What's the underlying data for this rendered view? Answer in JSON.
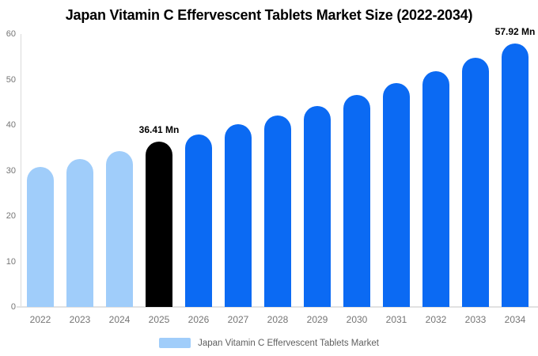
{
  "title": "Japan Vitamin C Effervescent Tablets Market Size (2022-2034)",
  "legend": {
    "label": "Japan Vitamin C Effervescent Tablets Market",
    "swatch_color": "#a0cdfa"
  },
  "colors": {
    "historical_bar": "#a0cdfa",
    "base_year_bar": "#000000",
    "forecast_bar": "#0b6af3",
    "axis_line": "#d9d9d9",
    "baseline": "#e2e2e2",
    "tick_text": "#757575",
    "legend_text": "#5f5f5f",
    "annotation_text": "#000000",
    "background": "#ffffff"
  },
  "chart_data": {
    "type": "bar",
    "title": "Japan Vitamin C Effervescent Tablets Market Size (2022-2034)",
    "categories": [
      "2022",
      "2023",
      "2024",
      "2025",
      "2026",
      "2027",
      "2028",
      "2029",
      "2030",
      "2031",
      "2032",
      "2033",
      "2034"
    ],
    "values": [
      30.8,
      32.6,
      34.3,
      36.41,
      38.0,
      40.1,
      42.1,
      44.2,
      46.6,
      49.2,
      51.8,
      54.7,
      57.92
    ],
    "bar_colors": [
      "#a0cdfa",
      "#a0cdfa",
      "#a0cdfa",
      "#000000",
      "#0b6af3",
      "#0b6af3",
      "#0b6af3",
      "#0b6af3",
      "#0b6af3",
      "#0b6af3",
      "#0b6af3",
      "#0b6af3",
      "#0b6af3"
    ],
    "xlabel": "",
    "ylabel": "",
    "ylim": [
      0,
      60
    ],
    "yticks": [
      0,
      10,
      20,
      30,
      40,
      50,
      60
    ],
    "grid": false,
    "legend_position": "bottom",
    "annotations": [
      {
        "category": "2025",
        "text": "36.41 Mn"
      },
      {
        "category": "2034",
        "text": "57.92 Mn"
      }
    ]
  }
}
